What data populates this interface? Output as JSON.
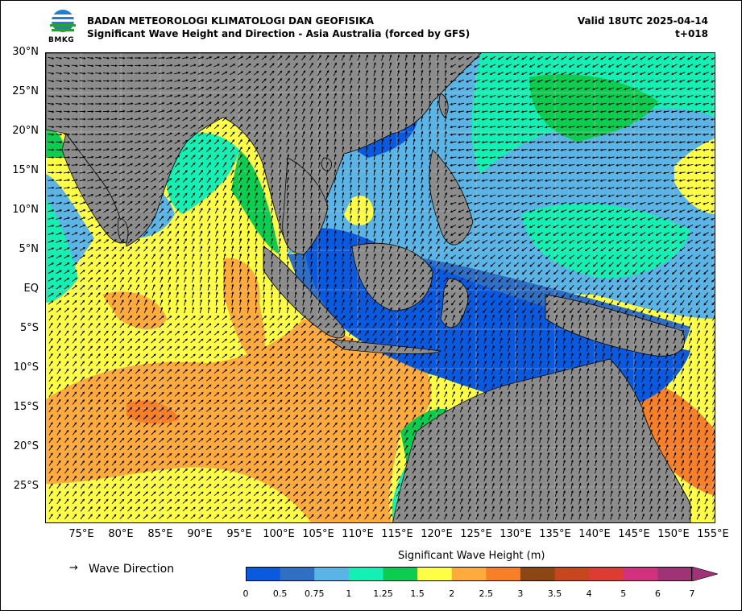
{
  "header": {
    "logo_text": "BMKG",
    "agency": "BADAN METEOROLOGI KLIMATOLOGI DAN GEOFISIKA",
    "product": "Significant Wave Height and Direction - Asia Australia (forced by GFS)",
    "valid": "Valid 18UTC 2025-04-14",
    "lead": "t+018"
  },
  "axes": {
    "lat_labels": [
      "30°N",
      "25°N",
      "20°N",
      "15°N",
      "10°N",
      "5°N",
      "EQ",
      "5°S",
      "10°S",
      "15°S",
      "20°S",
      "25°S"
    ],
    "lon_labels": [
      "75°E",
      "80°E",
      "85°E",
      "90°E",
      "95°E",
      "100°E",
      "105°E",
      "110°E",
      "115°E",
      "120°E",
      "125°E",
      "130°E",
      "135°E",
      "140°E",
      "145°E",
      "150°E",
      "155°E"
    ]
  },
  "legend": {
    "arrow_symbol": "→",
    "direction_label": "Wave Direction",
    "colorbar_title": "Significant Wave Height (m)",
    "levels": [
      "0",
      "0.5",
      "0.75",
      "1",
      "1.25",
      "1.5",
      "2",
      "2.5",
      "3",
      "3.5",
      "4",
      "5",
      "6",
      "7"
    ],
    "colors": [
      "#0a5ae0",
      "#2f6fc4",
      "#5bb4e6",
      "#14f0b4",
      "#0ccd50",
      "#ffff46",
      "#ffaa3c",
      "#f77f28",
      "#8c4614",
      "#c8461e",
      "#dc3c32",
      "#d2327d",
      "#a03278"
    ]
  },
  "map_colors": {
    "land": "#8c8c8c",
    "c_lt05": "#0a5ae0",
    "c_05": "#2f6fc4",
    "c_075": "#5bb4e6",
    "c_1": "#14f0b4",
    "c_125": "#0ccd50",
    "c_15": "#ffff46",
    "c_2": "#ffaa3c",
    "c_25": "#f77f28"
  }
}
